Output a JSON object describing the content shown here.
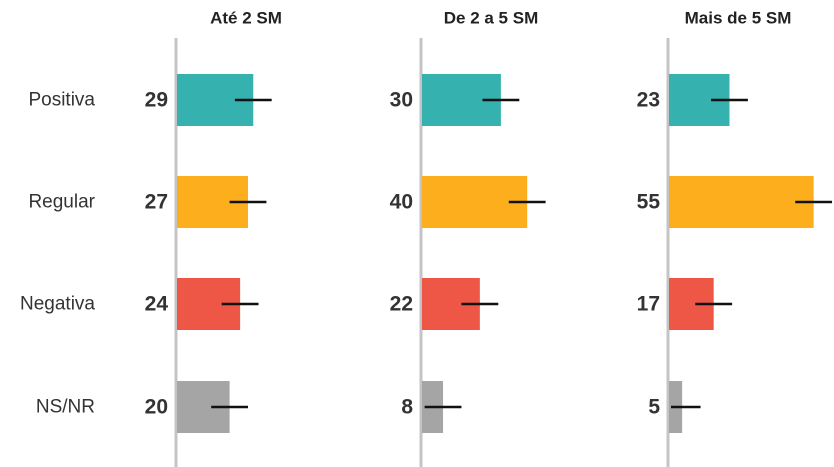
{
  "chart_data": {
    "type": "bar",
    "orientation": "horizontal",
    "categories": [
      "Positiva",
      "Regular",
      "Negativa",
      "NS/NR"
    ],
    "colors": {
      "Positiva": "#35b1b0",
      "Regular": "#fdae1c",
      "Negativa": "#ee5746",
      "NS/NR": "#a5a5a5"
    },
    "error_bar_color": "#111111",
    "axis_color": "#c4c4c4",
    "panels": [
      {
        "title": "Até 2 SM",
        "values": [
          29,
          27,
          24,
          20
        ]
      },
      {
        "title": "De 2 a 5 SM",
        "values": [
          30,
          40,
          22,
          8
        ]
      },
      {
        "title": "Mais de 5 SM",
        "values": [
          23,
          55,
          17,
          5
        ]
      }
    ],
    "error_margin": 7,
    "xlim": [
      0,
      55
    ],
    "grid": false,
    "legend": "none"
  }
}
